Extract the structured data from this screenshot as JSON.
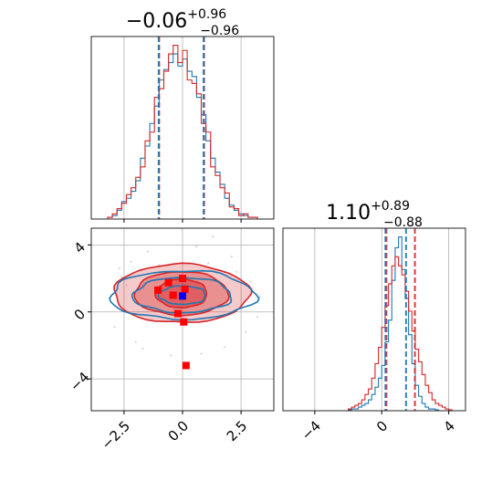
{
  "chart_data": [
    {
      "type": "histogram",
      "panel": "marginal-param-1",
      "title_main": "−0.06",
      "title_sup": "+0.96",
      "title_sub": "−0.96",
      "xlim": [
        -3.9,
        3.9
      ],
      "grid": true,
      "colors": {
        "series_a": "#1f77b4",
        "series_b": "#d62728"
      },
      "quantiles": {
        "series_a": [
          -1.02,
          0.9
        ],
        "series_b": [
          -1.0,
          0.92
        ]
      },
      "bins_x": [
        -3.2,
        -3.0,
        -2.8,
        -2.6,
        -2.4,
        -2.2,
        -2.0,
        -1.8,
        -1.6,
        -1.4,
        -1.2,
        -1.0,
        -0.8,
        -0.6,
        -0.4,
        -0.2,
        0.0,
        0.2,
        0.4,
        0.6,
        0.8,
        1.0,
        1.2,
        1.4,
        1.6,
        1.8,
        2.0,
        2.2,
        2.4,
        2.6,
        2.8,
        3.0,
        3.2
      ],
      "series": [
        {
          "key": "a",
          "values": [
            0.01,
            0.02,
            0.05,
            0.1,
            0.12,
            0.16,
            0.22,
            0.35,
            0.42,
            0.55,
            0.65,
            0.8,
            0.86,
            0.9,
            0.95,
            0.88,
            0.92,
            0.85,
            0.82,
            0.7,
            0.6,
            0.45,
            0.35,
            0.27,
            0.2,
            0.12,
            0.08,
            0.05,
            0.03,
            0.02,
            0.01,
            0.01
          ]
        },
        {
          "key": "b",
          "values": [
            0.01,
            0.03,
            0.06,
            0.09,
            0.14,
            0.18,
            0.24,
            0.3,
            0.45,
            0.5,
            0.7,
            0.75,
            0.85,
            0.95,
            1.0,
            0.9,
            0.97,
            0.8,
            0.78,
            0.72,
            0.55,
            0.5,
            0.3,
            0.25,
            0.18,
            0.15,
            0.07,
            0.06,
            0.02,
            0.03,
            0.01,
            0.01
          ]
        }
      ]
    },
    {
      "type": "histogram",
      "panel": "marginal-param-2",
      "title_main": "1.10",
      "title_sup": "+0.89",
      "title_sub": "−0.88",
      "xlim": [
        -5.9,
        5.0
      ],
      "xticks": [
        "−4",
        "0",
        "4"
      ],
      "xtick_values": [
        -4,
        0,
        4
      ],
      "grid": true,
      "quantiles": {
        "series_a": [
          0.22,
          1.45
        ],
        "series_b": [
          0.28,
          1.98
        ]
      },
      "bins_x": [
        -2.0,
        -1.8,
        -1.6,
        -1.4,
        -1.2,
        -1.0,
        -0.8,
        -0.6,
        -0.4,
        -0.2,
        0.0,
        0.2,
        0.4,
        0.6,
        0.8,
        1.0,
        1.2,
        1.4,
        1.6,
        1.8,
        2.0,
        2.2,
        2.4,
        2.6,
        2.8,
        3.0,
        3.2,
        3.4,
        3.6,
        3.8,
        4.0,
        4.2
      ],
      "series": [
        {
          "key": "a",
          "values": [
            0.005,
            0.01,
            0.01,
            0.02,
            0.03,
            0.04,
            0.06,
            0.09,
            0.13,
            0.18,
            0.25,
            0.38,
            0.5,
            0.72,
            0.9,
            0.96,
            0.78,
            0.62,
            0.42,
            0.26,
            0.14,
            0.08,
            0.04,
            0.02,
            0.01,
            0.01,
            0.005,
            0.0,
            0.0,
            0.0,
            0.0
          ]
        },
        {
          "key": "b",
          "values": [
            0.01,
            0.02,
            0.03,
            0.04,
            0.06,
            0.09,
            0.12,
            0.18,
            0.26,
            0.35,
            0.46,
            0.58,
            0.7,
            0.8,
            0.85,
            0.8,
            0.75,
            0.66,
            0.55,
            0.44,
            0.34,
            0.27,
            0.2,
            0.14,
            0.1,
            0.06,
            0.04,
            0.03,
            0.02,
            0.01,
            0.005
          ]
        }
      ]
    },
    {
      "type": "scatter",
      "panel": "joint-param-1-param-2",
      "xlim": [
        -3.9,
        3.9
      ],
      "ylim": [
        -5.9,
        5.0
      ],
      "xticks": [
        "−2.5",
        "0.0",
        "2.5"
      ],
      "xtick_values": [
        -2.5,
        0.0,
        2.5
      ],
      "yticks": [
        "−4",
        "0",
        "4"
      ],
      "ytick_values": [
        -4,
        0,
        4
      ],
      "grid": true,
      "contour_levels_b": [
        {
          "cx": -0.05,
          "cy": 1.1,
          "rx": 2.9,
          "ry": 1.75,
          "opacity": 0.45
        },
        {
          "cx": -0.05,
          "cy": 1.1,
          "rx": 2.0,
          "ry": 1.3,
          "opacity": 0.65
        },
        {
          "cx": -0.05,
          "cy": 1.1,
          "rx": 1.1,
          "ry": 0.85,
          "opacity": 0.85
        }
      ],
      "contour_levels_a": [
        {
          "cx": 0.0,
          "cy": 1.0,
          "rx": 3.1,
          "ry": 1.45
        },
        {
          "cx": 0.0,
          "cy": 1.0,
          "rx": 2.1,
          "ry": 1.05
        },
        {
          "cx": 0.0,
          "cy": 1.0,
          "rx": 1.0,
          "ry": 0.55
        }
      ],
      "markers_b": [
        [
          -0.6,
          1.75
        ],
        [
          -1.05,
          1.3
        ],
        [
          -0.4,
          1.0
        ],
        [
          0.0,
          2.0
        ],
        [
          0.1,
          1.35
        ],
        [
          -0.2,
          -0.1
        ],
        [
          0.05,
          -0.6
        ],
        [
          0.15,
          -3.2
        ]
      ],
      "markers_a": [
        [
          0.0,
          0.95
        ]
      ],
      "faint_points": [
        [
          -2.6,
          2.1
        ],
        [
          -2.2,
          3.0
        ],
        [
          -1.5,
          3.6
        ],
        [
          0.6,
          3.9
        ],
        [
          1.3,
          4.5
        ],
        [
          2.1,
          3.3
        ],
        [
          2.9,
          1.8
        ],
        [
          3.2,
          -0.3
        ],
        [
          2.7,
          -1.2
        ],
        [
          1.8,
          -2.1
        ],
        [
          0.8,
          -2.5
        ],
        [
          -0.5,
          -2.6
        ],
        [
          -1.7,
          -2.2
        ],
        [
          -2.9,
          -0.9
        ],
        [
          -3.1,
          0.8
        ],
        [
          -2.4,
          1.6
        ],
        [
          3.3,
          0.9
        ],
        [
          -2.0,
          -1.8
        ],
        [
          1.1,
          2.9
        ],
        [
          -1.0,
          2.8
        ],
        [
          2.3,
          2.4
        ],
        [
          -2.7,
          2.6
        ]
      ]
    }
  ]
}
